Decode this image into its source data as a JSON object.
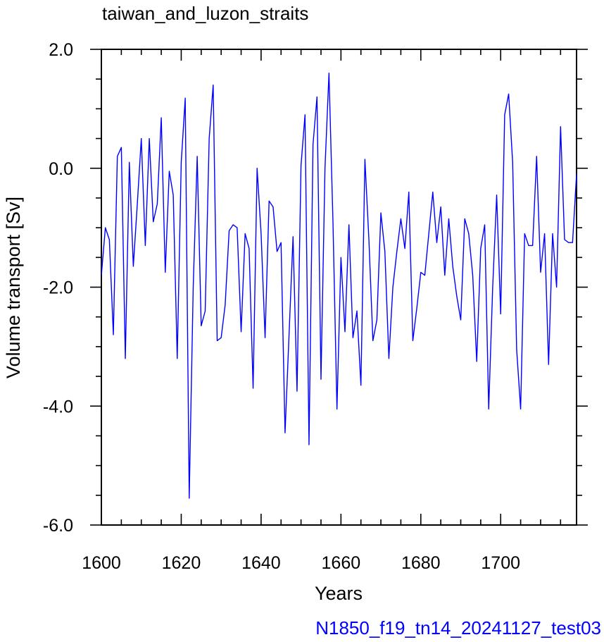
{
  "chart_data": {
    "type": "line",
    "title": "taiwan_and_luzon_straits",
    "xlabel": "Years",
    "ylabel": "Volume transport [Sv]",
    "xlim": [
      1600,
      1719
    ],
    "ylim": [
      -6.0,
      2.0
    ],
    "x_ticks": [
      1600,
      1620,
      1640,
      1660,
      1680,
      1700
    ],
    "x_tick_labels": [
      "1600",
      "1620",
      "1640",
      "1660",
      "1680",
      "1700"
    ],
    "y_ticks": [
      2.0,
      0.0,
      -2.0,
      -4.0,
      -6.0
    ],
    "y_tick_labels": [
      "2.0",
      "0.0",
      "-2.0",
      "-4.0",
      "-6.0"
    ],
    "x_minor_step": 5,
    "y_minor_step": 0.5,
    "grid": false,
    "series_color": "#0000ff",
    "footer_color": "#0000ff",
    "footer": "N1850_f19_tn14_20241127_test03",
    "x_start": 1600,
    "x_step": 1,
    "values": [
      -1.8,
      -1.0,
      -1.2,
      -2.8,
      0.2,
      0.35,
      -3.2,
      0.1,
      -1.65,
      -0.6,
      0.5,
      -1.3,
      0.5,
      -0.9,
      -0.6,
      0.85,
      -1.75,
      -0.05,
      -0.45,
      -3.2,
      0.1,
      1.18,
      -5.55,
      -2.0,
      0.2,
      -2.65,
      -2.4,
      0.5,
      1.4,
      -2.9,
      -2.85,
      -2.3,
      -1.05,
      -0.95,
      -1.0,
      -2.75,
      -1.1,
      -1.35,
      -3.7,
      0.0,
      -1.1,
      -2.85,
      -0.55,
      -0.65,
      -1.4,
      -1.25,
      -4.45,
      -2.8,
      -1.15,
      -3.75,
      0.05,
      0.9,
      -4.65,
      0.4,
      1.2,
      -3.55,
      0.0,
      1.6,
      -0.9,
      -4.05,
      -1.5,
      -2.75,
      -0.95,
      -2.85,
      -2.4,
      -3.65,
      0.15,
      -1.2,
      -2.9,
      -2.55,
      -0.75,
      -1.4,
      -3.2,
      -2.0,
      -1.4,
      -0.85,
      -1.35,
      -0.4,
      -2.9,
      -2.35,
      -1.75,
      -1.8,
      -1.1,
      -0.4,
      -1.25,
      -0.65,
      -1.8,
      -0.85,
      -1.65,
      -2.15,
      -2.55,
      -0.85,
      -1.1,
      -1.8,
      -3.25,
      -1.35,
      -0.95,
      -4.05,
      -2.0,
      -0.45,
      -2.45,
      0.9,
      1.25,
      0.1,
      -3.05,
      -4.05,
      -1.1,
      -1.3,
      -1.3,
      0.2,
      -1.75,
      -1.1,
      -3.3,
      -1.1,
      -2.0,
      0.7,
      -1.2,
      -1.25,
      -1.25,
      -0.1
    ]
  }
}
